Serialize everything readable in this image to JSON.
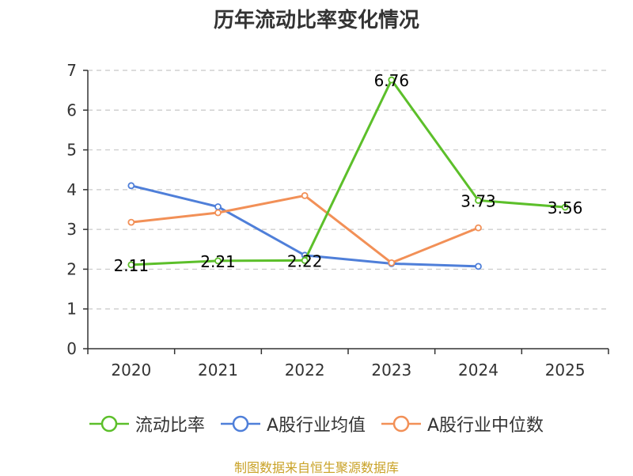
{
  "chart_data": {
    "type": "line",
    "title": "历年流动比率变化情况",
    "categories": [
      "2020",
      "2021",
      "2022",
      "2023",
      "2024",
      "2025"
    ],
    "ylim": [
      0,
      7
    ],
    "yticks": [
      0,
      1,
      2,
      3,
      4,
      5,
      6,
      7
    ],
    "grid": true,
    "legend_position": "bottom",
    "series": [
      {
        "name": "流动比率",
        "color": "#5cbf2a",
        "values": [
          2.11,
          2.21,
          2.22,
          6.76,
          3.73,
          3.56
        ],
        "labels": [
          "2.11",
          "2.21",
          "2.22",
          "6.76",
          "3.73",
          "3.56"
        ]
      },
      {
        "name": "A股行业均值",
        "color": "#4f7fd9",
        "values": [
          4.1,
          3.57,
          2.35,
          2.14,
          2.07,
          null
        ]
      },
      {
        "name": "A股行业中位数",
        "color": "#f29057",
        "values": [
          3.18,
          3.42,
          3.85,
          2.16,
          3.04,
          null
        ]
      }
    ]
  },
  "footer": {
    "source": "制图数据来自恒生聚源数据库"
  }
}
